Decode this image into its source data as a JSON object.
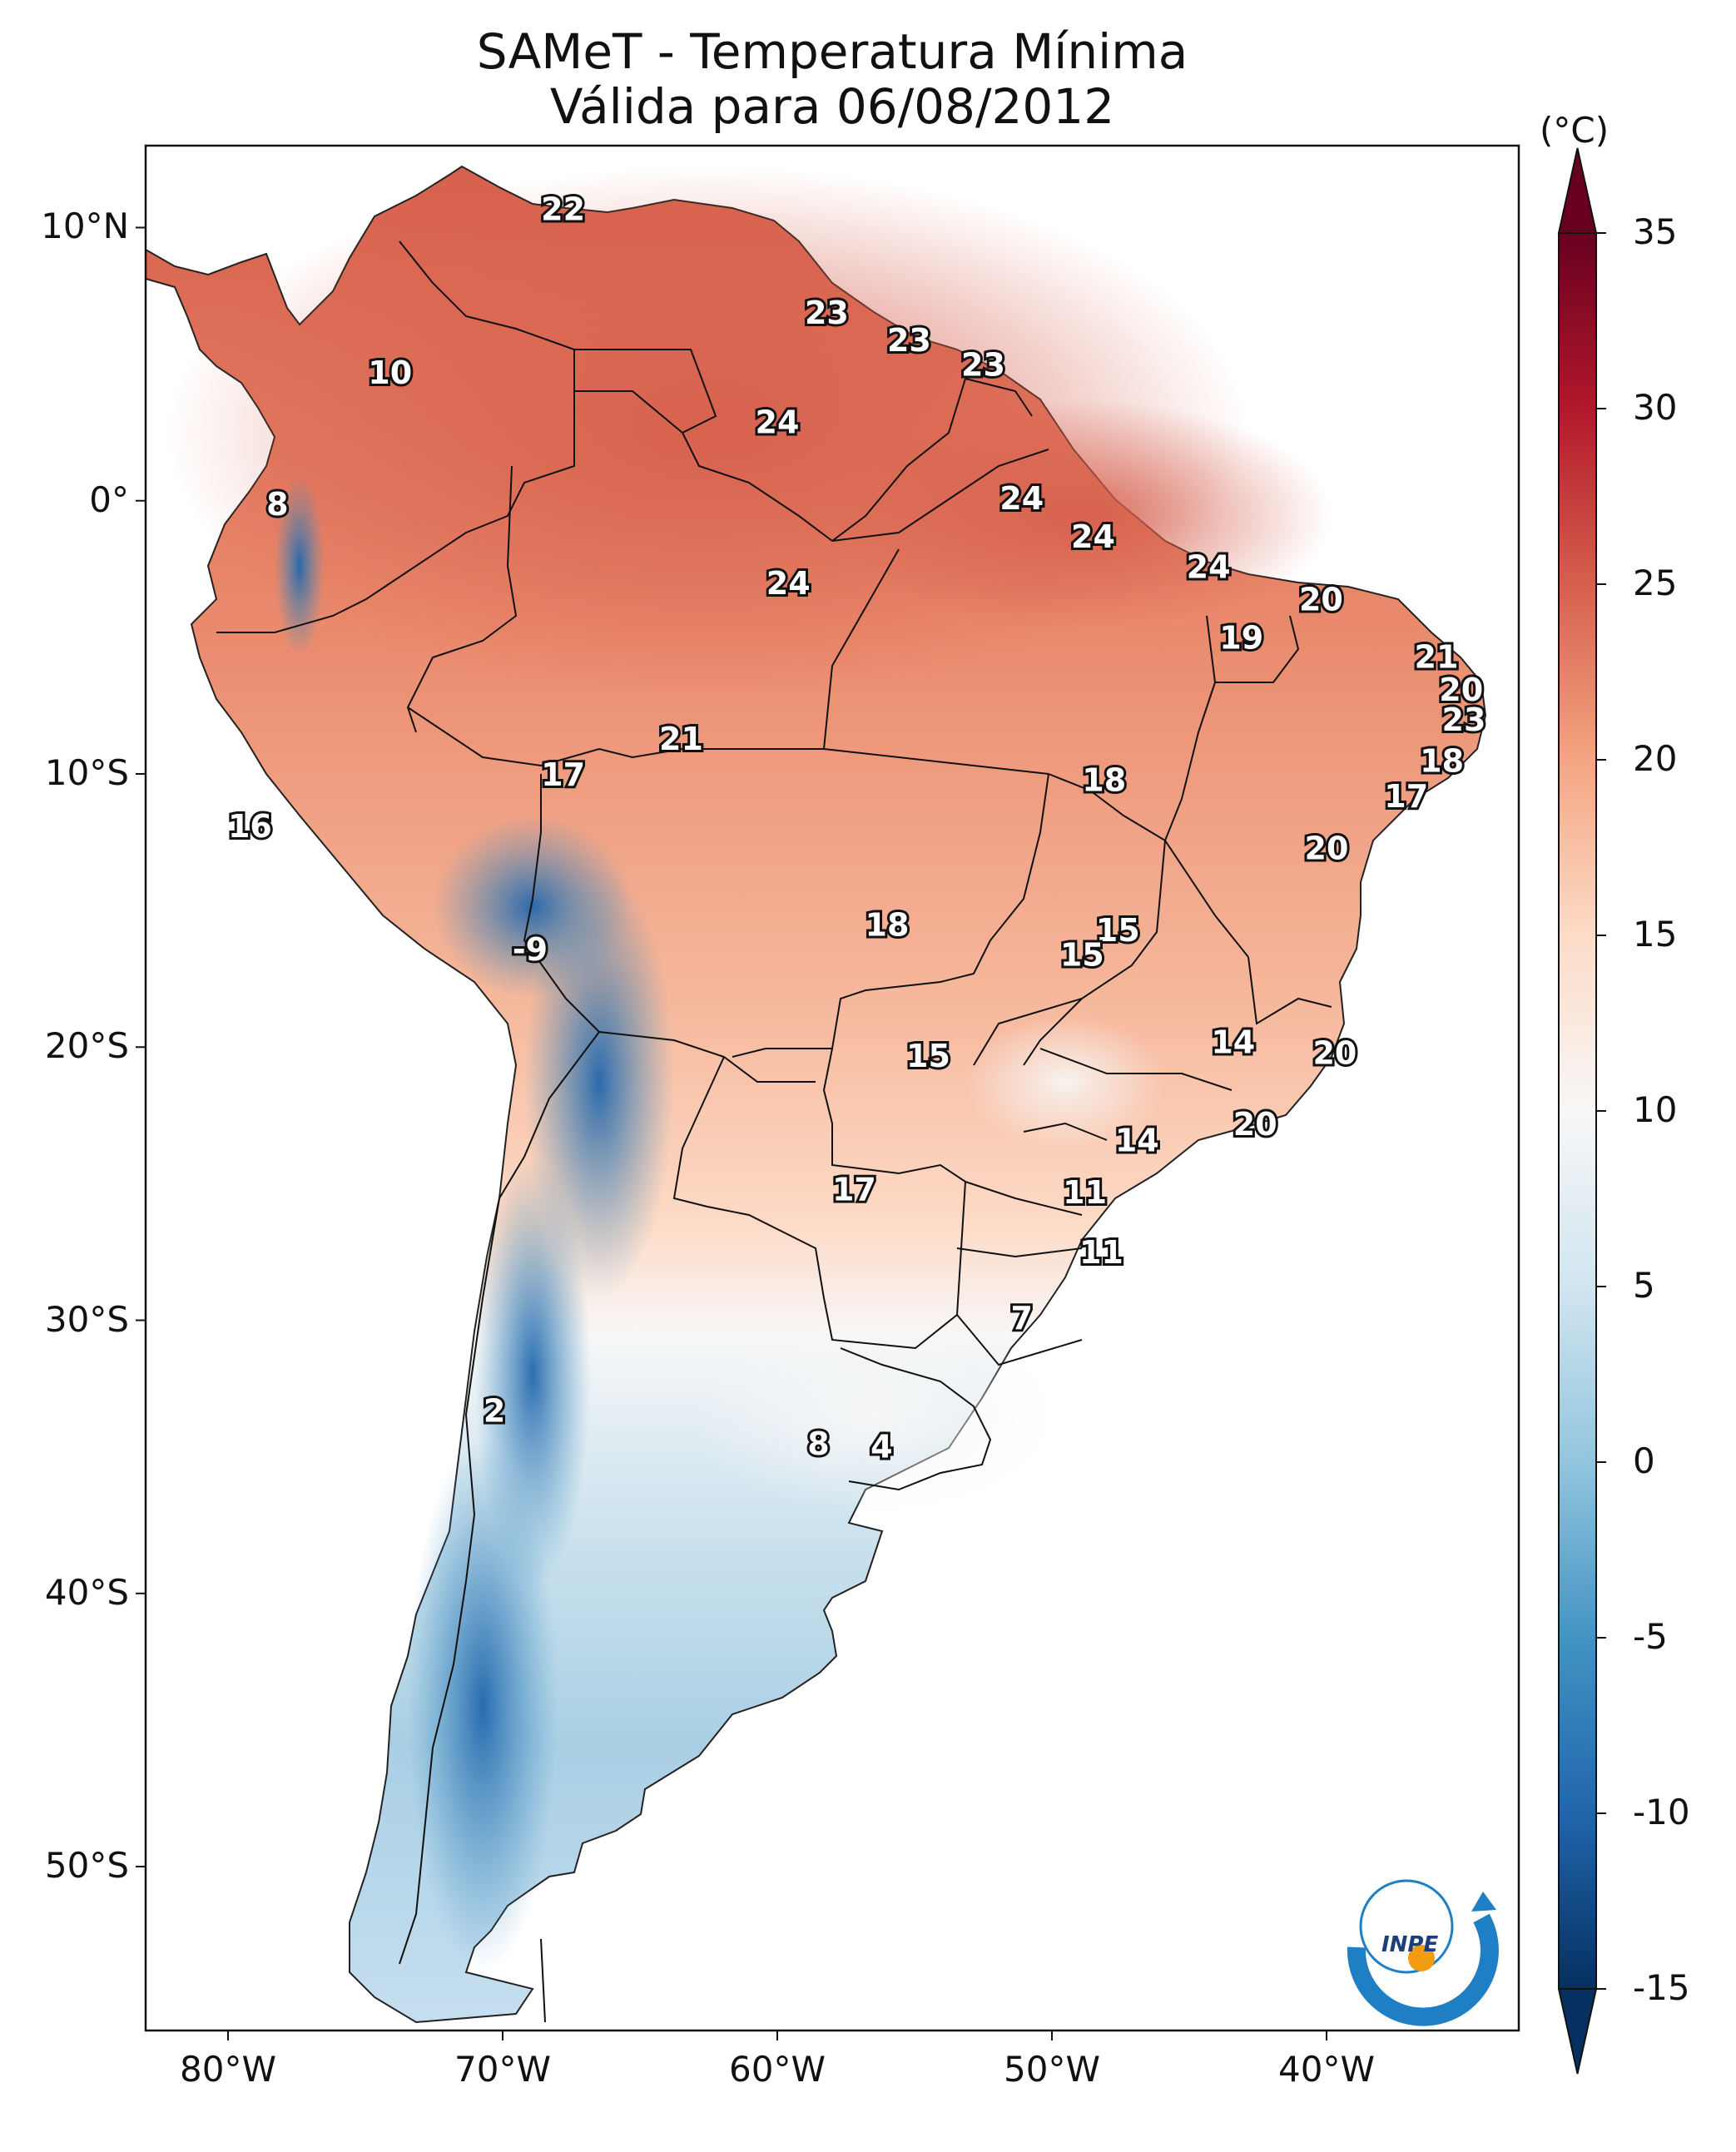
{
  "title": {
    "line1": "SAMeT - Temperatura Mínima",
    "line2": "Válida para 06/08/2012"
  },
  "map": {
    "lon_range": [
      -83,
      -33
    ],
    "lat_range": [
      -56,
      13
    ],
    "lon_ticks": [
      {
        "value": -80,
        "label": "80°W"
      },
      {
        "value": -70,
        "label": "70°W"
      },
      {
        "value": -60,
        "label": "60°W"
      },
      {
        "value": -50,
        "label": "50°W"
      },
      {
        "value": -40,
        "label": "40°W"
      }
    ],
    "lat_ticks": [
      {
        "value": 10,
        "label": "10°N"
      },
      {
        "value": 0,
        "label": "0°"
      },
      {
        "value": -10,
        "label": "10°S"
      },
      {
        "value": -20,
        "label": "20°S"
      },
      {
        "value": -30,
        "label": "30°S"
      },
      {
        "value": -40,
        "label": "40°S"
      },
      {
        "value": -50,
        "label": "50°S"
      }
    ],
    "value_labels": [
      {
        "lon": -67.8,
        "lat": 10.6,
        "text": "22"
      },
      {
        "lon": -74.1,
        "lat": 4.6,
        "text": "10"
      },
      {
        "lon": -78.2,
        "lat": -0.2,
        "text": "8"
      },
      {
        "lon": -58.2,
        "lat": 6.8,
        "text": "23"
      },
      {
        "lon": -55.2,
        "lat": 5.8,
        "text": "23"
      },
      {
        "lon": -52.5,
        "lat": 4.9,
        "text": "23"
      },
      {
        "lon": -60.0,
        "lat": 2.8,
        "text": "24"
      },
      {
        "lon": -51.1,
        "lat": 0.0,
        "text": "24"
      },
      {
        "lon": -48.5,
        "lat": -1.4,
        "text": "24"
      },
      {
        "lon": -59.6,
        "lat": -3.1,
        "text": "24"
      },
      {
        "lon": -44.3,
        "lat": -2.5,
        "text": "24"
      },
      {
        "lon": -40.2,
        "lat": -3.7,
        "text": "20"
      },
      {
        "lon": -43.1,
        "lat": -5.1,
        "text": "19"
      },
      {
        "lon": -36.0,
        "lat": -5.8,
        "text": "21"
      },
      {
        "lon": -35.1,
        "lat": -7.0,
        "text": "20"
      },
      {
        "lon": -35.0,
        "lat": -8.1,
        "text": "23"
      },
      {
        "lon": -35.8,
        "lat": -9.6,
        "text": "18"
      },
      {
        "lon": -37.1,
        "lat": -10.9,
        "text": "17"
      },
      {
        "lon": -40.0,
        "lat": -12.8,
        "text": "20"
      },
      {
        "lon": -63.5,
        "lat": -8.8,
        "text": "21"
      },
      {
        "lon": -67.8,
        "lat": -10.1,
        "text": "17"
      },
      {
        "lon": -48.1,
        "lat": -10.3,
        "text": "18"
      },
      {
        "lon": -79.2,
        "lat": -12.0,
        "text": "16"
      },
      {
        "lon": -56.0,
        "lat": -15.6,
        "text": "18"
      },
      {
        "lon": -47.6,
        "lat": -15.8,
        "text": "15"
      },
      {
        "lon": -48.9,
        "lat": -16.7,
        "text": "15"
      },
      {
        "lon": -69.0,
        "lat": -16.5,
        "text": "-9"
      },
      {
        "lon": -54.5,
        "lat": -20.4,
        "text": "15"
      },
      {
        "lon": -43.4,
        "lat": -19.9,
        "text": "14"
      },
      {
        "lon": -39.7,
        "lat": -20.3,
        "text": "20"
      },
      {
        "lon": -42.6,
        "lat": -22.9,
        "text": "20"
      },
      {
        "lon": -46.9,
        "lat": -23.5,
        "text": "14"
      },
      {
        "lon": -57.2,
        "lat": -25.3,
        "text": "17"
      },
      {
        "lon": -48.8,
        "lat": -25.4,
        "text": "11"
      },
      {
        "lon": -48.2,
        "lat": -27.6,
        "text": "11"
      },
      {
        "lon": -51.1,
        "lat": -30.0,
        "text": "7"
      },
      {
        "lon": -70.3,
        "lat": -33.4,
        "text": "2"
      },
      {
        "lon": -58.5,
        "lat": -34.6,
        "text": "8"
      },
      {
        "lon": -56.2,
        "lat": -34.7,
        "text": "4"
      }
    ]
  },
  "colorbar": {
    "unit": "(°C)",
    "range": [
      -15,
      35
    ],
    "ticks": [
      "35",
      "30",
      "25",
      "20",
      "15",
      "10",
      "5",
      "0",
      "-5",
      "-10",
      "-15"
    ],
    "colors": [
      "#053061",
      "#2166ac",
      "#4393c3",
      "#92c5de",
      "#d1e5f0",
      "#f7f7f7",
      "#fddbc7",
      "#f4a582",
      "#d6604d",
      "#b2182b",
      "#67001f"
    ]
  },
  "logo": {
    "text": "INPE",
    "primary_color": "#1e7fc4",
    "accent_color": "#f39c12"
  }
}
